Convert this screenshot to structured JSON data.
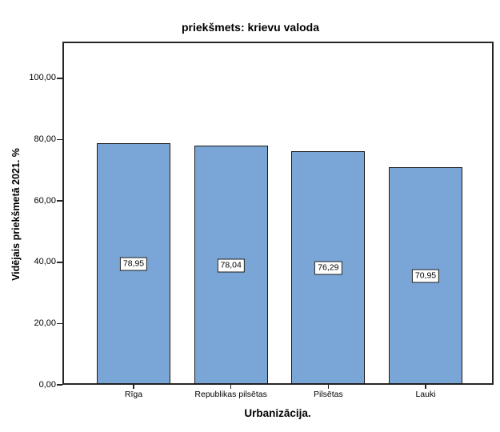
{
  "chart_data": {
    "type": "bar",
    "title": "priekšmets: krievu valoda",
    "xlabel": "Urbanizācija.",
    "ylabel": "Vidējais priekšmetā 2021. %",
    "categories": [
      "Rīga",
      "Republikas pilsētas",
      "Pilsētas",
      "Lauki"
    ],
    "values": [
      78.95,
      78.04,
      76.29,
      70.95
    ],
    "value_labels": [
      "78,95",
      "78,04",
      "76,29",
      "70,95"
    ],
    "ylim": [
      0,
      112
    ],
    "yticks": [
      0,
      20,
      40,
      60,
      80,
      100
    ],
    "ytick_labels": [
      "0,00",
      "20,00",
      "40,00",
      "60,00",
      "80,00",
      "100,00"
    ],
    "grid": false,
    "legend": "none",
    "colors": {
      "bar_fill": "#79A6D6",
      "bar_border": "#1a1a1a",
      "axis": "#262626",
      "background": "#ffffff",
      "text": "#000000"
    }
  }
}
